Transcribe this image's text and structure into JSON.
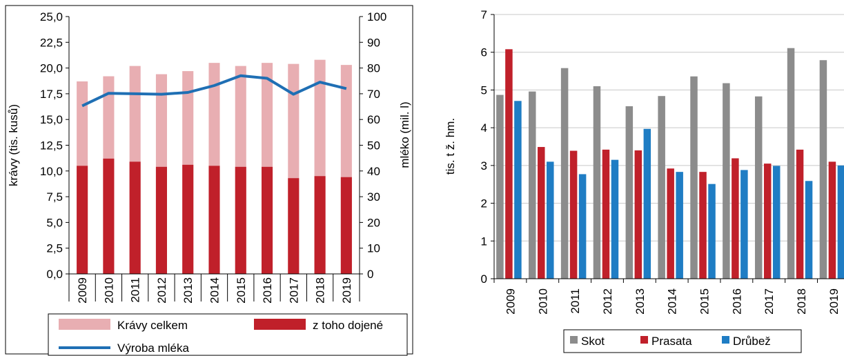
{
  "chart_data": [
    {
      "type": "bar",
      "categories": [
        "2009",
        "2010",
        "2011",
        "2012",
        "2013",
        "2014",
        "2015",
        "2016",
        "2017",
        "2018",
        "2019"
      ],
      "ylabel": "krávy (tis. kusů)",
      "ylabel_right": "mléko (mil. l)",
      "ylim": [
        0,
        25
      ],
      "ylim_right": [
        0,
        100
      ],
      "yticks": [
        "0,0",
        "2,5",
        "5,0",
        "7,5",
        "10,0",
        "12,5",
        "15,0",
        "17,5",
        "20,0",
        "22,5",
        "25,0"
      ],
      "yticks_right": [
        "0",
        "10",
        "20",
        "30",
        "40",
        "50",
        "60",
        "70",
        "80",
        "90",
        "100"
      ],
      "grid": false,
      "legend_position": "bottom",
      "series": [
        {
          "name": "Krávy celkem",
          "type": "bar",
          "axis": "left",
          "color": "#E8AEB2",
          "values": [
            18.7,
            19.2,
            20.2,
            19.4,
            19.7,
            20.5,
            20.2,
            20.5,
            20.4,
            20.8,
            20.3
          ]
        },
        {
          "name": "z toho dojené",
          "type": "bar",
          "axis": "left",
          "color": "#C0202A",
          "values": [
            10.5,
            11.2,
            10.9,
            10.4,
            10.6,
            10.5,
            10.4,
            10.4,
            9.3,
            9.5,
            9.4
          ]
        },
        {
          "name": "Výroba mléka",
          "type": "line",
          "axis": "right",
          "color": "#1F6FB4",
          "values": [
            65.3,
            70.2,
            70.0,
            69.8,
            70.5,
            73.2,
            77.0,
            76.0,
            69.8,
            74.5,
            72.0
          ]
        }
      ]
    },
    {
      "type": "bar",
      "categories": [
        "2009",
        "2010",
        "2011",
        "2012",
        "2013",
        "2014",
        "2015",
        "2016",
        "2017",
        "2018",
        "2019"
      ],
      "ylabel": "tis. t ž. hm.",
      "ylim": [
        0,
        7
      ],
      "yticks": [
        "0",
        "1",
        "2",
        "3",
        "4",
        "5",
        "6",
        "7"
      ],
      "grid": true,
      "legend_position": "bottom",
      "series": [
        {
          "name": "Skot",
          "color": "#8C8C8C",
          "values": [
            4.87,
            4.96,
            5.58,
            5.1,
            4.57,
            4.84,
            5.36,
            5.18,
            4.83,
            6.11,
            5.79
          ]
        },
        {
          "name": "Prasata",
          "color": "#C0202A",
          "values": [
            6.08,
            3.49,
            3.39,
            3.42,
            3.4,
            2.92,
            2.83,
            3.19,
            3.05,
            3.42,
            3.1
          ]
        },
        {
          "name": "Drůbež",
          "color": "#1F7DC4",
          "values": [
            4.71,
            3.1,
            2.77,
            3.15,
            3.97,
            2.83,
            2.51,
            2.88,
            2.99,
            2.59,
            3.0
          ]
        }
      ]
    }
  ]
}
